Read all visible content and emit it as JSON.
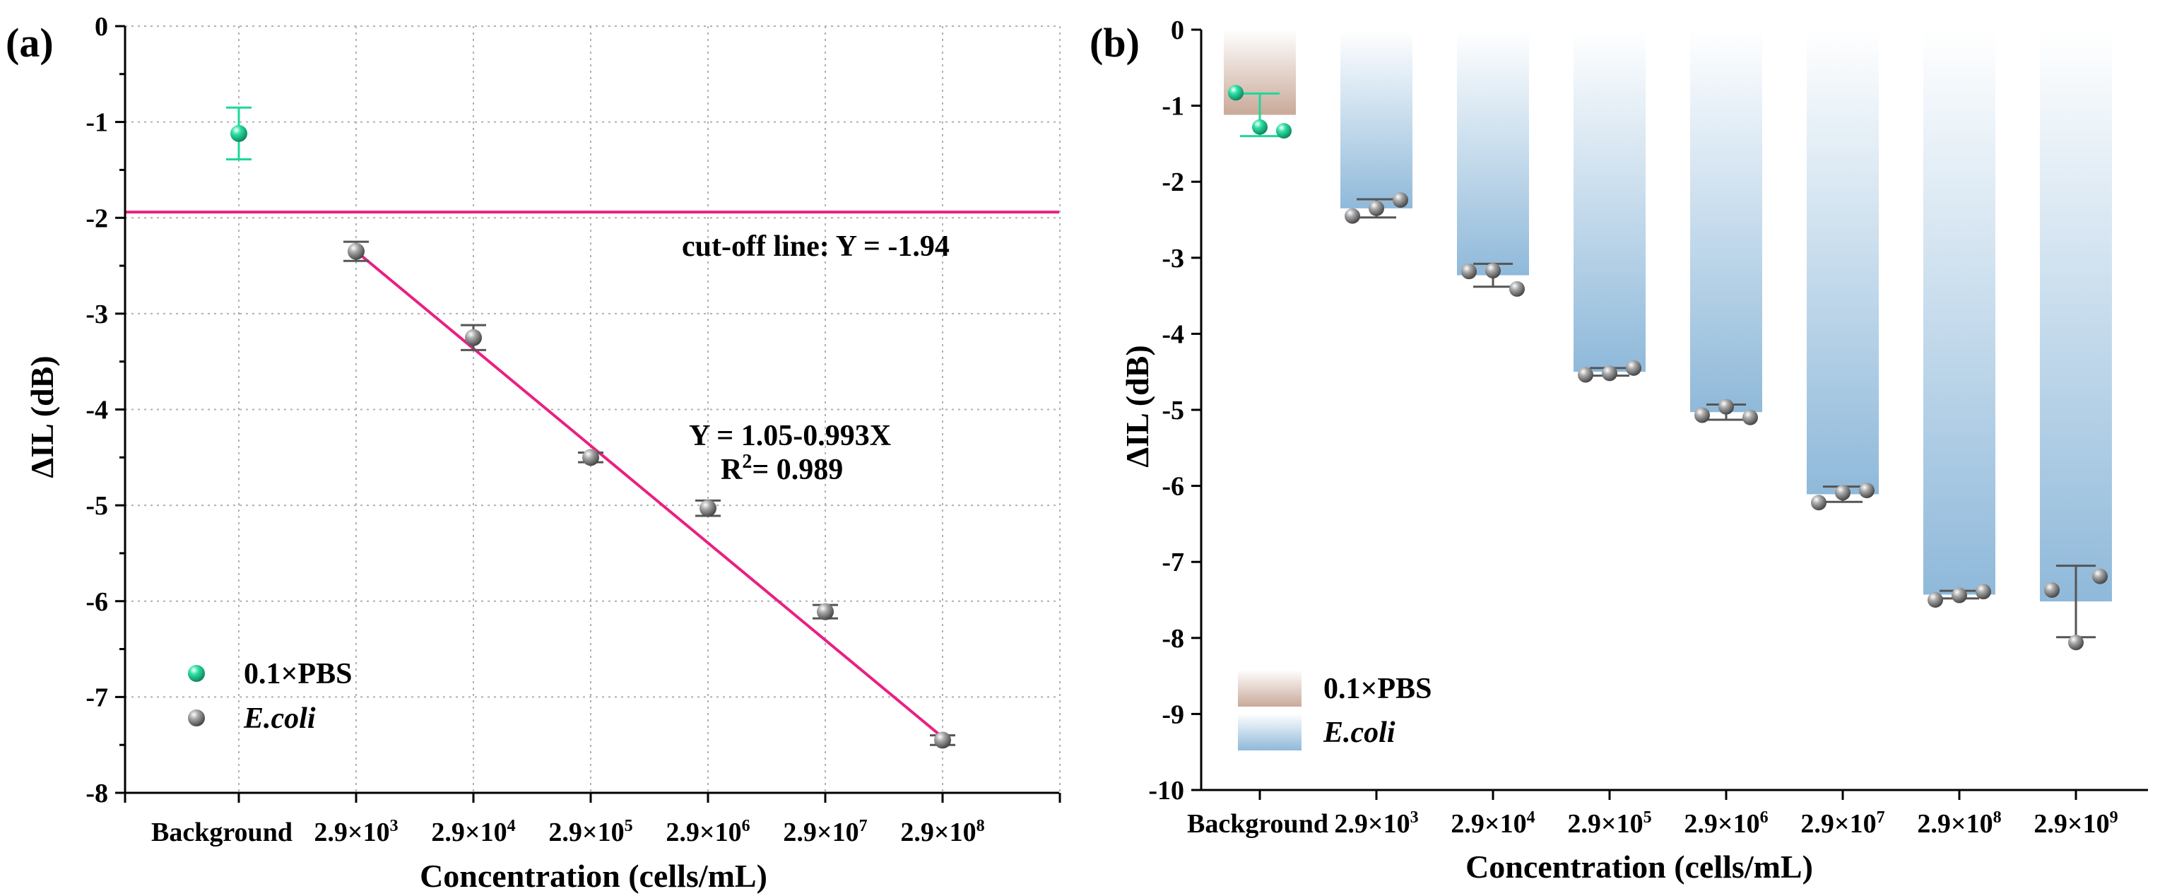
{
  "chart_data": [
    {
      "type": "scatter",
      "panel_label": "(a)",
      "title": "",
      "xlabel": "Concentration (cells/mL)",
      "ylabel": "ΔIL (dB)",
      "ylim": [
        -8,
        0
      ],
      "yticks": [
        "0",
        "-1",
        "-2",
        "-3",
        "-4",
        "-5",
        "-6",
        "-7",
        "-8"
      ],
      "categories": [
        {
          "main": "Background",
          "sup": ""
        },
        {
          "main": "2.9×10",
          "sup": "3"
        },
        {
          "main": "2.9×10",
          "sup": "4"
        },
        {
          "main": "2.9×10",
          "sup": "5"
        },
        {
          "main": "2.9×10",
          "sup": "6"
        },
        {
          "main": "2.9×10",
          "sup": "7"
        },
        {
          "main": "2.9×10",
          "sup": "8"
        }
      ],
      "grid": true,
      "series": [
        {
          "name": "0.1×PBS",
          "color": "#1dd89a",
          "points": [
            {
              "x": 0,
              "y": -1.12,
              "err": 0.27
            }
          ]
        },
        {
          "name": "E.coli",
          "color": "#8c8c8c",
          "points": [
            {
              "x": 1,
              "y": -2.35,
              "err": 0.1
            },
            {
              "x": 2,
              "y": -3.25,
              "err": 0.13
            },
            {
              "x": 3,
              "y": -4.5,
              "err": 0.05
            },
            {
              "x": 4,
              "y": -5.03,
              "err": 0.08
            },
            {
              "x": 5,
              "y": -6.11,
              "err": 0.07
            },
            {
              "x": 6,
              "y": -7.45,
              "err": 0.05
            }
          ]
        }
      ],
      "cutoff": {
        "y": -1.94,
        "label": "cut-off line: Y = -1.94",
        "color": "#ea1f82"
      },
      "fit": {
        "x_start": 1,
        "x_end": 6,
        "y_start": -2.35,
        "y_end": -7.42,
        "color": "#ea1f82",
        "equation": "Y = 1.05-0.993X",
        "r2_prefix": "R",
        "r2_sup": "2",
        "r2_value": "= 0.989"
      },
      "legend_position": "bottom-left"
    },
    {
      "type": "bar",
      "panel_label": "(b)",
      "title": "",
      "xlabel": "Concentration (cells/mL)",
      "ylabel": "ΔIL (dB)",
      "ylim": [
        -10,
        0
      ],
      "yticks": [
        "0",
        "-1",
        "-2",
        "-3",
        "-4",
        "-5",
        "-6",
        "-7",
        "-8",
        "-9",
        "-10"
      ],
      "categories": [
        {
          "main": "Background",
          "sup": ""
        },
        {
          "main": "2.9×10",
          "sup": "3"
        },
        {
          "main": "2.9×10",
          "sup": "4"
        },
        {
          "main": "2.9×10",
          "sup": "5"
        },
        {
          "main": "2.9×10",
          "sup": "6"
        },
        {
          "main": "2.9×10",
          "sup": "7"
        },
        {
          "main": "2.9×10",
          "sup": "8"
        },
        {
          "main": "2.9×10",
          "sup": "9"
        }
      ],
      "values": [
        -1.12,
        -2.35,
        -3.23,
        -4.5,
        -5.03,
        -6.11,
        -7.43,
        -7.52
      ],
      "errors": [
        0.28,
        0.12,
        0.15,
        0.05,
        0.1,
        0.1,
        0.05,
        0.47
      ],
      "replicates": [
        [
          -0.83,
          -1.28,
          -1.33
        ],
        [
          -2.45,
          -2.35,
          -2.24
        ],
        [
          -3.18,
          -3.17,
          -3.41
        ],
        [
          -4.54,
          -4.52,
          -4.45
        ],
        [
          -5.07,
          -4.96,
          -5.1
        ],
        [
          -6.22,
          -6.09,
          -6.06
        ],
        [
          -7.5,
          -7.44,
          -7.39
        ],
        [
          -7.37,
          -8.06,
          -7.19
        ]
      ],
      "series": [
        {
          "name": "0.1×PBS",
          "color": "#c9a999"
        },
        {
          "name": "E.coli",
          "color": "#8fb9da"
        }
      ],
      "legend_position": "bottom-left"
    }
  ]
}
